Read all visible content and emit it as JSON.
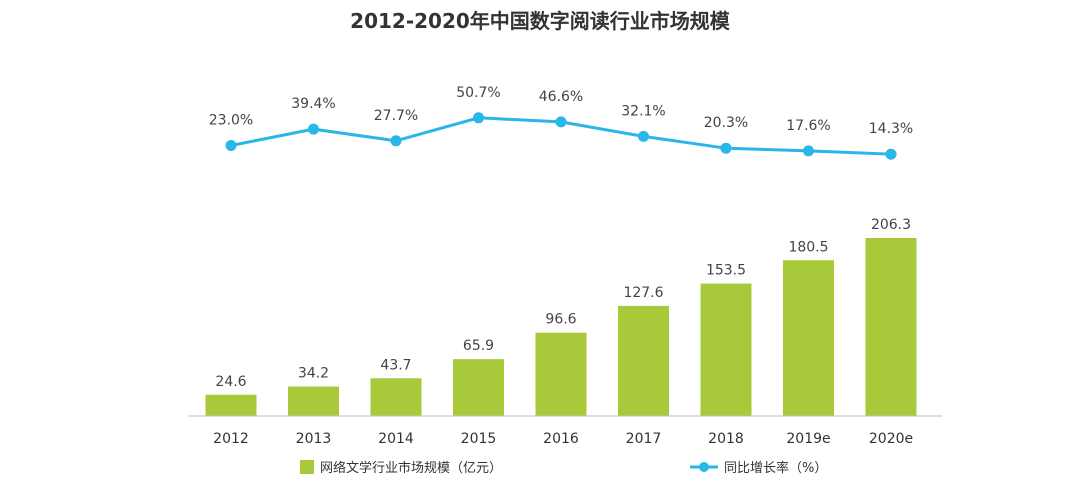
{
  "chart_data": {
    "type": "bar",
    "title": "2012-2020年中国数字阅读行业市场规模",
    "categories": [
      "2012",
      "2013",
      "2014",
      "2015",
      "2016",
      "2017",
      "2018",
      "2019e",
      "2020e"
    ],
    "series": [
      {
        "name": "网络文学行业市场规模（亿元）",
        "type": "bar",
        "values": [
          24.6,
          34.2,
          43.7,
          65.9,
          96.6,
          127.6,
          153.5,
          180.5,
          206.3
        ],
        "labels": [
          "24.6",
          "34.2",
          "43.7",
          "65.9",
          "96.6",
          "127.6",
          "153.5",
          "180.5",
          "206.3"
        ]
      },
      {
        "name": "同比增长率（%）",
        "type": "line",
        "values": [
          23.0,
          39.4,
          27.7,
          50.7,
          46.6,
          32.1,
          20.3,
          17.6,
          14.3
        ],
        "labels": [
          "23.0%",
          "39.4%",
          "27.7%",
          "50.7%",
          "46.6%",
          "32.1%",
          "20.3%",
          "17.6%",
          "14.3%"
        ]
      }
    ],
    "legend": {
      "placement": "bottom"
    },
    "grid": false,
    "colors": {
      "bar": "#a8c93a",
      "line": "#29b6e8",
      "axis": "#bfbfbf"
    }
  }
}
